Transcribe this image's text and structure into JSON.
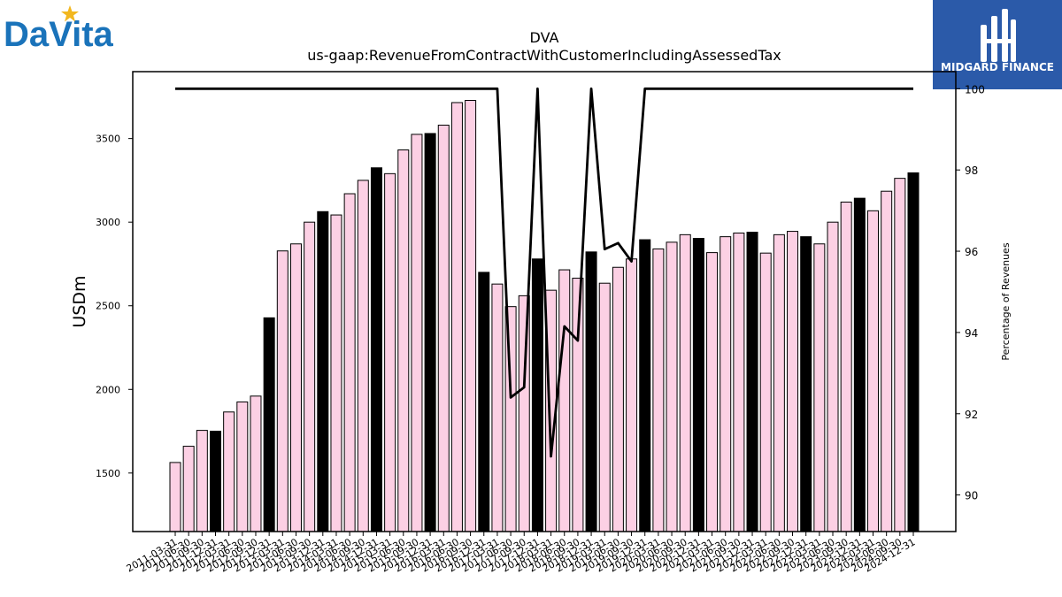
{
  "logos": {
    "left_text": "DaVita",
    "right_text": "MIDGARD FINANCE"
  },
  "colors": {
    "bar_fill": "#fcd0e4",
    "bar_highlight": "#000000",
    "line": "#000000",
    "davita_blue": "#1a73ba",
    "davita_star": "#f2b71f",
    "midgard_blue": "#2b5aa9"
  },
  "chart_data": {
    "type": "bar",
    "title": "DVA",
    "subtitle": "us-gaap:RevenueFromContractWithCustomerIncludingAssessedTax",
    "ylabel": "USDm",
    "y2label": "Percentage of Revenues",
    "ylim": [
      1150,
      3900
    ],
    "y2lim": [
      89.1,
      100.42
    ],
    "yticks": [
      1500,
      2000,
      2500,
      3000,
      3500
    ],
    "y2ticks": [
      90,
      92,
      94,
      96,
      98,
      100
    ],
    "categories": [
      "2011-03-31",
      "2011-06-30",
      "2011-09-30",
      "2011-12-31",
      "2012-03-31",
      "2012-06-30",
      "2012-09-30",
      "2012-12-31",
      "2013-03-31",
      "2013-06-30",
      "2013-09-30",
      "2013-12-31",
      "2014-03-31",
      "2014-06-30",
      "2014-09-30",
      "2014-12-31",
      "2015-03-31",
      "2015-06-30",
      "2015-09-30",
      "2015-12-31",
      "2016-03-31",
      "2016-06-30",
      "2016-09-30",
      "2016-12-31",
      "2017-03-31",
      "2017-06-30",
      "2017-09-30",
      "2017-12-31",
      "2018-03-31",
      "2018-06-30",
      "2018-09-30",
      "2018-12-31",
      "2019-03-31",
      "2019-06-30",
      "2019-09-30",
      "2019-12-31",
      "2020-03-31",
      "2020-06-30",
      "2020-09-30",
      "2020-12-31",
      "2021-03-31",
      "2021-06-30",
      "2021-09-30",
      "2021-12-31",
      "2022-03-31",
      "2022-06-30",
      "2022-09-30",
      "2022-12-31",
      "2023-03-31",
      "2023-06-30",
      "2023-09-30",
      "2023-12-31",
      "2024-03-31",
      "2024-06-30",
      "2024-09-30",
      "2024-12-31"
    ],
    "values": [
      1563,
      1660,
      1755,
      1750,
      1865,
      1925,
      1960,
      2428,
      2828,
      2870,
      3000,
      3063,
      3043,
      3170,
      3250,
      3325,
      3290,
      3432,
      3525,
      3530,
      3580,
      3715,
      3728,
      2700,
      2630,
      2495,
      2560,
      2780,
      2593,
      2715,
      2665,
      2822,
      2635,
      2730,
      2780,
      2895,
      2840,
      2880,
      2925,
      2903,
      2818,
      2913,
      2935,
      2940,
      2815,
      2925,
      2945,
      2913,
      2870,
      3000,
      3120,
      3143,
      3068,
      3185,
      3262,
      3295
    ],
    "highlight": [
      false,
      false,
      false,
      true,
      false,
      false,
      false,
      true,
      false,
      false,
      false,
      true,
      false,
      false,
      false,
      true,
      false,
      false,
      false,
      true,
      false,
      false,
      false,
      true,
      false,
      false,
      false,
      true,
      false,
      false,
      false,
      true,
      false,
      false,
      false,
      true,
      false,
      false,
      false,
      true,
      false,
      false,
      false,
      true,
      false,
      false,
      false,
      true,
      false,
      false,
      false,
      true,
      false,
      false,
      false,
      true
    ],
    "line_series": [
      100,
      100,
      100,
      100,
      100,
      100,
      100,
      100,
      100,
      100,
      100,
      100,
      100,
      100,
      100,
      100,
      100,
      100,
      100,
      100,
      100,
      100,
      100,
      100,
      100,
      92.4,
      92.65,
      100,
      90.95,
      94.15,
      93.8,
      100,
      96.05,
      96.2,
      95.75,
      100,
      100,
      100,
      100,
      100,
      100,
      100,
      100,
      100,
      100,
      100,
      100,
      100,
      100,
      100,
      100,
      100,
      100,
      100,
      100,
      100
    ]
  }
}
